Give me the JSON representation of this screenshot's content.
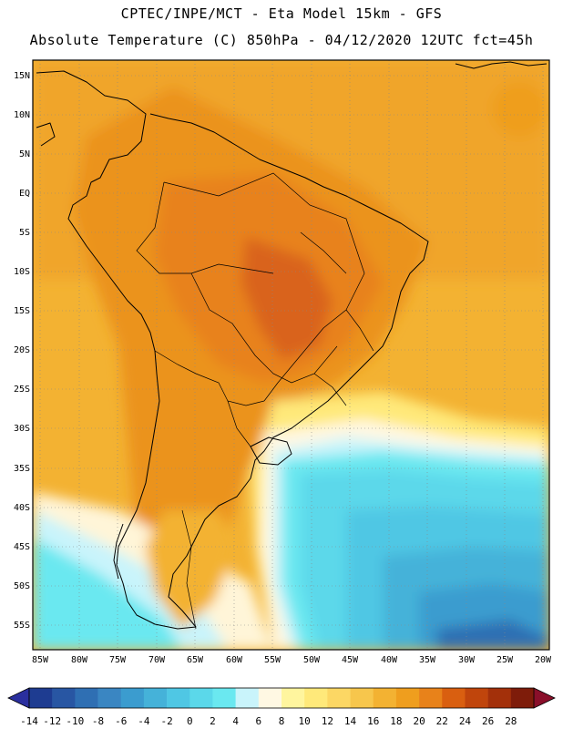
{
  "header": {
    "line1": "CPTEC/INPE/MCT -  Eta Model 15km - GFS",
    "line2": "Absolute Temperature (C) 850hPa - 04/12/2020 12UTC fct=45h"
  },
  "lat_ticks": [
    "15N",
    "10N",
    "5N",
    "EQ",
    "5S",
    "10S",
    "15S",
    "20S",
    "25S",
    "30S",
    "35S",
    "40S",
    "45S",
    "50S",
    "55S"
  ],
  "lon_ticks": [
    "85W",
    "80W",
    "75W",
    "70W",
    "65W",
    "60W",
    "55W",
    "50W",
    "45W",
    "40W",
    "35W",
    "30W",
    "25W",
    "20W"
  ],
  "colorbar": {
    "labels": [
      "-14",
      "-12",
      "-10",
      "-8",
      "-6",
      "-4",
      "-2",
      "0",
      "2",
      "4",
      "6",
      "8",
      "10",
      "12",
      "14",
      "16",
      "18",
      "20",
      "22",
      "24",
      "26",
      "28"
    ],
    "colors": [
      "#1e3c91",
      "#2856a3",
      "#2f6fb3",
      "#3a86c2",
      "#3b9ccf",
      "#45b2d9",
      "#4fc7e4",
      "#5bd8ea",
      "#6ae8f0",
      "#c9f4fb",
      "#fff8e3",
      "#fff59e",
      "#ffe97a",
      "#fcd764",
      "#f7c64c",
      "#f3b232",
      "#ef9e1e",
      "#e8821a",
      "#d95f10",
      "#c0450c",
      "#a3300a",
      "#7e1c0a"
    ],
    "left_color": "#2a2f9e",
    "right_color": "#8a0f2a"
  }
}
